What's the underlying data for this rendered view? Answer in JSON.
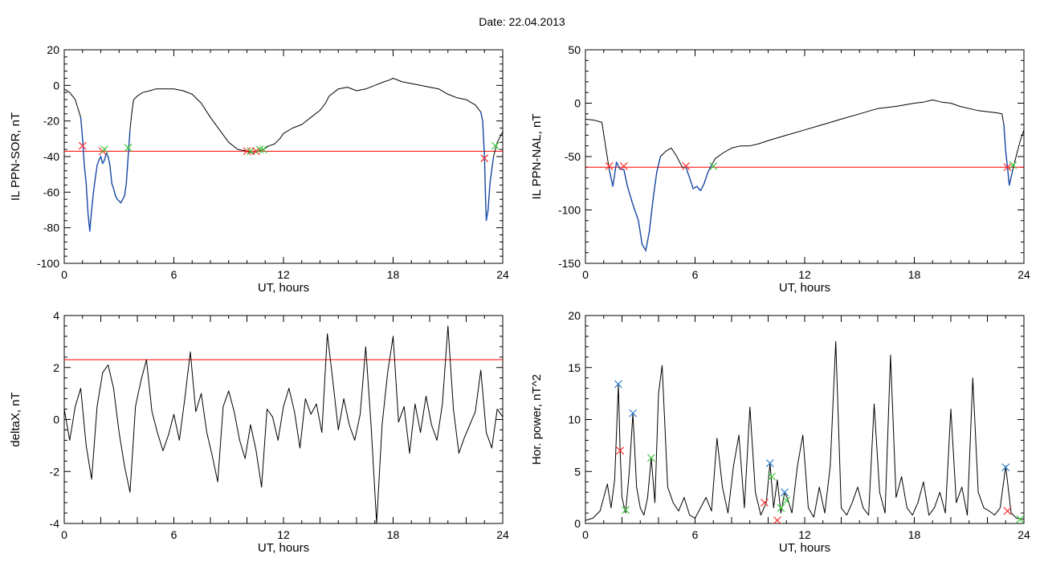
{
  "page": {
    "title": "Date:  22.04.2013"
  },
  "colors": {
    "threshold": "#ff0000",
    "highlight": "#1f5fd6",
    "trace": "#000000",
    "marker_red": "#ff2a2a",
    "marker_green": "#3cc83c",
    "marker_blue": "#2f7fd0"
  },
  "chart_data": [
    {
      "type": "line",
      "ylabel": "IL PPN-SOR, nT",
      "xlabel": "UT, hours",
      "xlim": [
        0,
        24
      ],
      "ylim": [
        -100,
        20
      ],
      "xticks": [
        0,
        6,
        12,
        18,
        24
      ],
      "yticks": [
        -100,
        -80,
        -60,
        -40,
        -20,
        0,
        20
      ],
      "threshold": -37,
      "x": [
        0,
        0.3,
        0.6,
        0.9,
        1.0,
        1.1,
        1.2,
        1.3,
        1.4,
        1.5,
        1.6,
        1.7,
        1.8,
        1.9,
        2.0,
        2.1,
        2.2,
        2.3,
        2.4,
        2.5,
        2.6,
        2.7,
        2.8,
        2.9,
        3.0,
        3.1,
        3.2,
        3.3,
        3.4,
        3.5,
        3.6,
        3.7,
        3.8,
        4.0,
        4.3,
        4.7,
        5.0,
        6.0,
        6.5,
        7.0,
        7.5,
        8.0,
        8.5,
        9.0,
        9.5,
        10.0,
        10.3,
        10.6,
        10.9,
        11.2,
        11.5,
        11.8,
        12.0,
        12.5,
        13.0,
        13.5,
        14.0,
        14.3,
        14.5,
        15.0,
        15.5,
        16.0,
        16.5,
        17.0,
        17.5,
        17.8,
        18.0,
        18.5,
        19.0,
        19.5,
        20.0,
        20.5,
        21.0,
        21.5,
        22.0,
        22.5,
        22.8,
        22.9,
        23.0,
        23.05,
        23.1,
        23.2,
        23.3,
        23.5,
        23.7,
        23.9,
        24.0
      ],
      "y": [
        -2,
        -4,
        -8,
        -18,
        -30,
        -45,
        -55,
        -72,
        -82,
        -70,
        -60,
        -52,
        -45,
        -42,
        -40,
        -44,
        -42,
        -38,
        -40,
        -45,
        -55,
        -58,
        -62,
        -64,
        -65,
        -66,
        -64,
        -62,
        -55,
        -40,
        -25,
        -15,
        -8,
        -6,
        -4,
        -3,
        -2,
        -2,
        -3,
        -5,
        -10,
        -18,
        -25,
        -32,
        -36,
        -37,
        -38,
        -37,
        -36,
        -34,
        -33,
        -30,
        -27,
        -24,
        -22,
        -18,
        -14,
        -10,
        -6,
        -2,
        -1,
        -3,
        -2,
        0,
        2,
        3,
        4,
        2,
        1,
        0,
        -1,
        -2,
        -5,
        -7,
        -8,
        -11,
        -15,
        -20,
        -40,
        -60,
        -76,
        -70,
        -55,
        -40,
        -32,
        -28,
        -26
      ],
      "highlight_segments": [
        [
          0.9,
          3.6
        ],
        [
          22.8,
          23.6
        ]
      ],
      "markers": [
        {
          "x": 1.0,
          "y": -34,
          "color": "red"
        },
        {
          "x": 2.1,
          "y": -37,
          "color": "red"
        },
        {
          "x": 2.2,
          "y": -36,
          "color": "green"
        },
        {
          "x": 3.5,
          "y": -35,
          "color": "green"
        },
        {
          "x": 10.0,
          "y": -37,
          "color": "red"
        },
        {
          "x": 10.2,
          "y": -37,
          "color": "green"
        },
        {
          "x": 10.5,
          "y": -37,
          "color": "red"
        },
        {
          "x": 10.7,
          "y": -36,
          "color": "green"
        },
        {
          "x": 10.9,
          "y": -36,
          "color": "green"
        },
        {
          "x": 23.0,
          "y": -41,
          "color": "red"
        },
        {
          "x": 23.6,
          "y": -34,
          "color": "green"
        }
      ]
    },
    {
      "type": "line",
      "ylabel": "IL PPN-NAL, nT",
      "xlabel": "UT, hours",
      "xlim": [
        0,
        24
      ],
      "ylim": [
        -150,
        50
      ],
      "xticks": [
        0,
        6,
        12,
        18,
        24
      ],
      "yticks": [
        -150,
        -100,
        -50,
        0,
        50
      ],
      "threshold": -60,
      "x": [
        0,
        0.5,
        0.9,
        1.1,
        1.3,
        1.5,
        1.7,
        1.9,
        2.1,
        2.3,
        2.6,
        2.9,
        3.1,
        3.3,
        3.5,
        3.7,
        3.9,
        4.1,
        4.4,
        4.7,
        5.0,
        5.3,
        5.5,
        5.7,
        5.9,
        6.1,
        6.3,
        6.5,
        6.7,
        6.9,
        7.1,
        7.5,
        8.0,
        8.5,
        9.0,
        9.5,
        10.0,
        11.0,
        12.0,
        13.0,
        14.0,
        15.0,
        16.0,
        17.0,
        18.0,
        18.5,
        19.0,
        19.5,
        20.0,
        20.5,
        21.0,
        21.5,
        22.0,
        22.5,
        22.8,
        22.9,
        23.0,
        23.1,
        23.2,
        23.4,
        23.6,
        23.8,
        24.0
      ],
      "y": [
        -15,
        -16,
        -18,
        -40,
        -62,
        -78,
        -55,
        -62,
        -62,
        -78,
        -95,
        -110,
        -132,
        -138,
        -120,
        -90,
        -65,
        -50,
        -45,
        -42,
        -50,
        -60,
        -60,
        -70,
        -80,
        -78,
        -82,
        -75,
        -65,
        -58,
        -52,
        -47,
        -42,
        -40,
        -40,
        -38,
        -35,
        -30,
        -25,
        -20,
        -15,
        -10,
        -5,
        -3,
        0,
        1,
        3,
        1,
        0,
        -3,
        -5,
        -7,
        -8,
        -9,
        -10,
        -20,
        -45,
        -60,
        -77,
        -62,
        -48,
        -35,
        -25
      ],
      "highlight_segments": [
        [
          1.2,
          4.3
        ],
        [
          5.5,
          7.0
        ],
        [
          22.9,
          23.4
        ]
      ],
      "markers": [
        {
          "x": 1.3,
          "y": -59,
          "color": "red"
        },
        {
          "x": 2.1,
          "y": -59,
          "color": "red"
        },
        {
          "x": 5.5,
          "y": -59,
          "color": "red"
        },
        {
          "x": 7.0,
          "y": -59,
          "color": "green"
        },
        {
          "x": 23.1,
          "y": -60,
          "color": "red"
        },
        {
          "x": 23.4,
          "y": -58,
          "color": "green"
        }
      ]
    },
    {
      "type": "line",
      "ylabel": "deltaX, nT",
      "xlabel": "UT, hours",
      "xlim": [
        0,
        24
      ],
      "ylim": [
        -4,
        4
      ],
      "xticks": [
        0,
        2,
        4,
        6,
        8,
        10,
        12,
        14,
        16,
        18,
        20,
        22,
        24
      ],
      "xtick_labels": [
        "0",
        "",
        "",
        "6",
        "",
        "",
        "12",
        "",
        "",
        "18",
        "",
        "",
        "24"
      ],
      "yticks": [
        -4,
        -2,
        0,
        2,
        4
      ],
      "threshold": 2.3,
      "x": [
        0,
        0.3,
        0.6,
        0.9,
        1.2,
        1.5,
        1.8,
        2.1,
        2.4,
        2.7,
        3.0,
        3.3,
        3.6,
        3.9,
        4.2,
        4.5,
        4.8,
        5.1,
        5.4,
        5.7,
        6.0,
        6.3,
        6.6,
        6.9,
        7.2,
        7.5,
        7.8,
        8.1,
        8.4,
        8.7,
        9.0,
        9.3,
        9.6,
        9.9,
        10.2,
        10.5,
        10.8,
        11.1,
        11.4,
        11.7,
        12.0,
        12.3,
        12.6,
        12.9,
        13.2,
        13.5,
        13.8,
        14.1,
        14.4,
        14.7,
        15.0,
        15.3,
        15.6,
        15.9,
        16.2,
        16.5,
        16.8,
        17.1,
        17.4,
        17.7,
        18.0,
        18.3,
        18.6,
        18.9,
        19.2,
        19.5,
        19.8,
        20.1,
        20.4,
        20.7,
        21.0,
        21.3,
        21.6,
        21.9,
        22.2,
        22.5,
        22.8,
        23.1,
        23.4,
        23.7,
        24.0
      ],
      "y": [
        0.4,
        -0.8,
        0.5,
        1.2,
        -1.0,
        -2.3,
        0.5,
        1.8,
        2.1,
        1.2,
        -0.5,
        -1.8,
        -2.8,
        0.5,
        1.5,
        2.3,
        0.3,
        -0.5,
        -1.2,
        -0.6,
        0.2,
        -0.8,
        0.8,
        2.6,
        0.3,
        1.0,
        -0.5,
        -1.4,
        -2.4,
        0.5,
        1.1,
        0.3,
        -0.8,
        -1.5,
        -0.2,
        -1.2,
        -2.6,
        0.4,
        0.1,
        -0.8,
        0.5,
        1.2,
        0.3,
        -1.1,
        0.8,
        0.2,
        0.6,
        -0.5,
        3.3,
        1.5,
        -0.4,
        0.8,
        -0.2,
        -0.8,
        0.2,
        2.8,
        -0.3,
        -4.0,
        -0.2,
        1.8,
        3.2,
        -0.1,
        0.5,
        -1.3,
        0.6,
        -0.5,
        0.9,
        -0.2,
        -0.8,
        0.6,
        3.6,
        0.4,
        -1.3,
        -0.7,
        -0.2,
        0.3,
        1.9,
        -0.5,
        -1.1,
        0.4,
        0.1
      ],
      "markers": []
    },
    {
      "type": "line",
      "ylabel": "Hor. power, nT^2",
      "xlabel": "UT, hours",
      "xlim": [
        0,
        24
      ],
      "ylim": [
        0,
        20
      ],
      "xticks": [
        0,
        2,
        4,
        6,
        8,
        10,
        12,
        14,
        16,
        18,
        20,
        22,
        24
      ],
      "xtick_labels": [
        "0",
        "",
        "",
        "6",
        "",
        "",
        "12",
        "",
        "",
        "18",
        "",
        "",
        "24"
      ],
      "yticks": [
        0,
        5,
        10,
        15,
        20
      ],
      "x": [
        0,
        0.4,
        0.8,
        1.0,
        1.2,
        1.4,
        1.6,
        1.8,
        1.9,
        2.0,
        2.2,
        2.4,
        2.6,
        2.8,
        3.0,
        3.2,
        3.4,
        3.6,
        3.8,
        4.0,
        4.2,
        4.5,
        4.8,
        5.1,
        5.4,
        5.7,
        6.0,
        6.3,
        6.6,
        6.9,
        7.2,
        7.5,
        7.8,
        8.1,
        8.4,
        8.7,
        9.0,
        9.3,
        9.6,
        9.9,
        10.1,
        10.3,
        10.5,
        10.7,
        10.9,
        11.1,
        11.3,
        11.6,
        11.9,
        12.2,
        12.5,
        12.8,
        13.1,
        13.4,
        13.7,
        14.0,
        14.3,
        14.6,
        14.9,
        15.2,
        15.5,
        15.8,
        16.1,
        16.4,
        16.7,
        17.0,
        17.3,
        17.6,
        17.9,
        18.2,
        18.5,
        18.8,
        19.1,
        19.4,
        19.7,
        20.0,
        20.3,
        20.6,
        20.9,
        21.2,
        21.5,
        21.8,
        22.1,
        22.4,
        22.7,
        23.0,
        23.3,
        23.6,
        24.0
      ],
      "y": [
        0.3,
        0.5,
        1.2,
        2.5,
        3.8,
        1.5,
        4.2,
        13.4,
        7.0,
        2.5,
        1.0,
        5.0,
        10.6,
        3.5,
        1.5,
        0.8,
        2.5,
        6.3,
        2.0,
        12.5,
        15.2,
        3.5,
        2.0,
        1.2,
        2.5,
        0.8,
        0.5,
        1.5,
        2.5,
        1.2,
        8.2,
        3.5,
        1.0,
        5.5,
        8.5,
        1.5,
        11.2,
        3.0,
        0.8,
        2.0,
        5.8,
        1.5,
        4.2,
        1.0,
        3.0,
        2.2,
        1.0,
        5.5,
        8.5,
        1.5,
        0.6,
        3.5,
        1.0,
        5.5,
        17.5,
        1.5,
        0.8,
        2.0,
        3.5,
        1.5,
        0.8,
        11.5,
        3.0,
        1.0,
        16.2,
        2.5,
        4.5,
        1.5,
        0.8,
        2.0,
        4.0,
        0.8,
        1.5,
        3.0,
        1.0,
        11.0,
        2.0,
        3.5,
        0.8,
        14.0,
        3.0,
        1.5,
        1.2,
        0.8,
        1.5,
        5.5,
        1.0,
        0.5,
        0.4
      ],
      "markers": [
        {
          "x": 1.8,
          "y": 13.4,
          "color": "blue"
        },
        {
          "x": 1.9,
          "y": 7.0,
          "color": "red"
        },
        {
          "x": 2.2,
          "y": 1.3,
          "color": "green"
        },
        {
          "x": 2.6,
          "y": 10.6,
          "color": "blue"
        },
        {
          "x": 3.6,
          "y": 6.3,
          "color": "green"
        },
        {
          "x": 9.8,
          "y": 2.0,
          "color": "red"
        },
        {
          "x": 10.1,
          "y": 5.8,
          "color": "blue"
        },
        {
          "x": 10.2,
          "y": 4.5,
          "color": "green"
        },
        {
          "x": 10.5,
          "y": 0.3,
          "color": "red"
        },
        {
          "x": 10.7,
          "y": 1.5,
          "color": "green"
        },
        {
          "x": 10.9,
          "y": 3.0,
          "color": "blue"
        },
        {
          "x": 11.0,
          "y": 2.2,
          "color": "green"
        },
        {
          "x": 23.0,
          "y": 5.4,
          "color": "blue"
        },
        {
          "x": 23.1,
          "y": 1.2,
          "color": "red"
        },
        {
          "x": 23.8,
          "y": 0.4,
          "color": "green"
        }
      ]
    }
  ]
}
